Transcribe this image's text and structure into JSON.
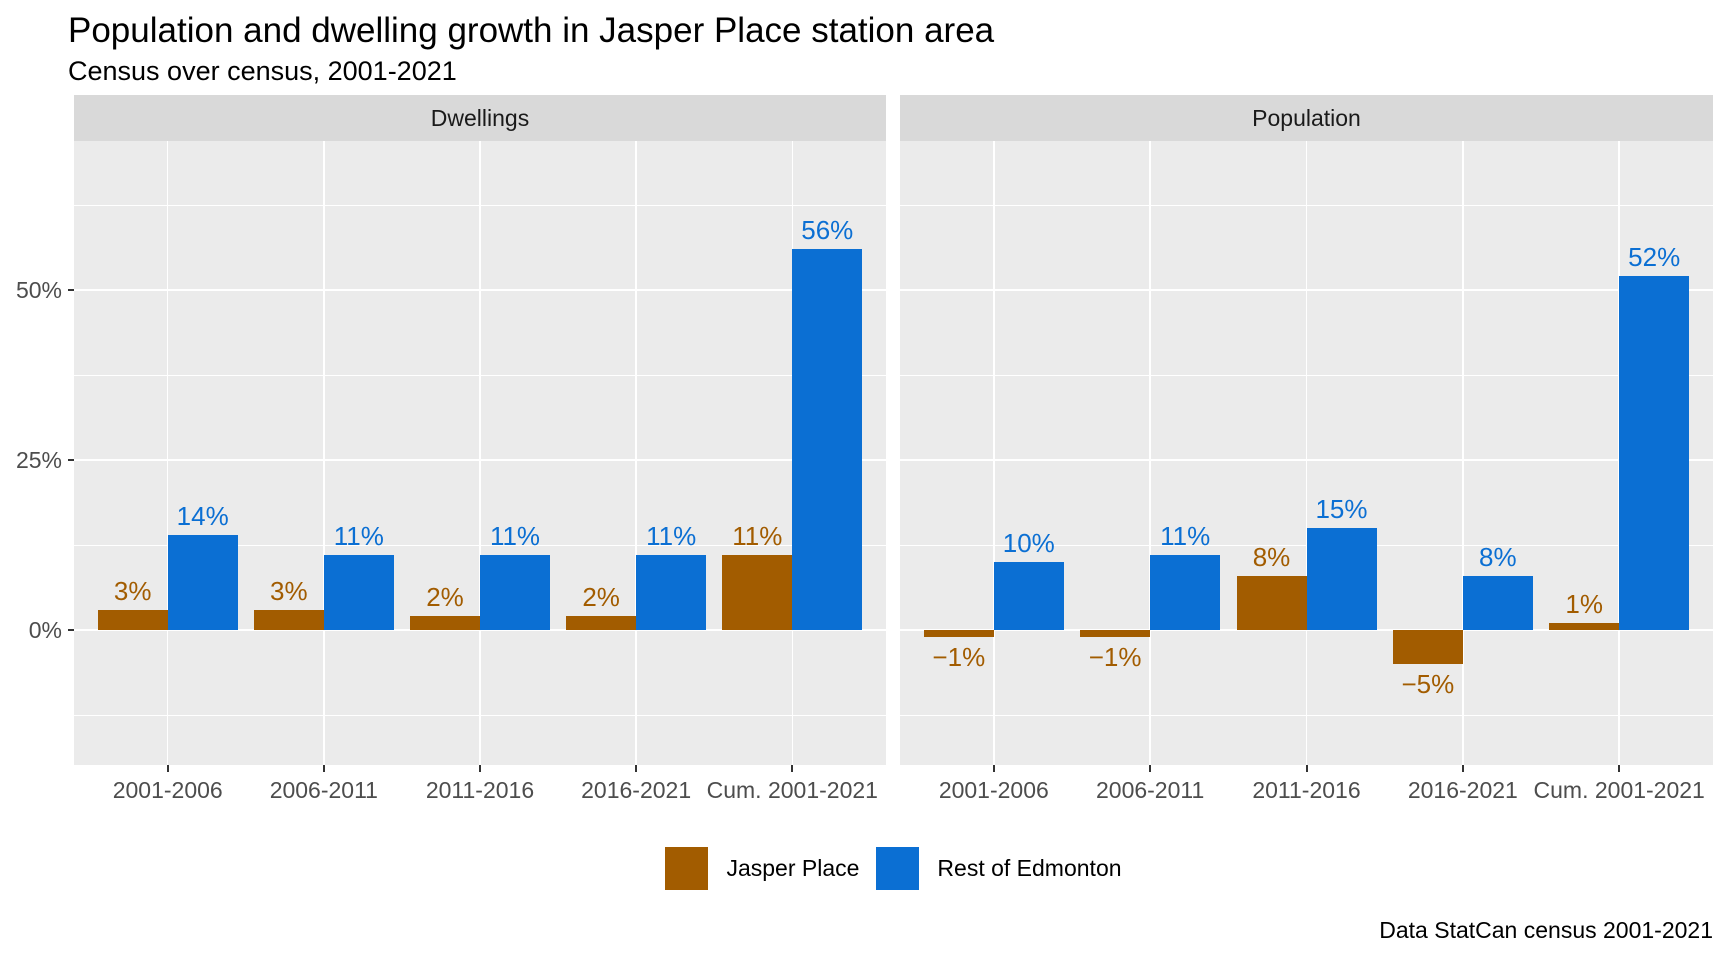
{
  "page": {
    "title": "Population and dwelling growth in Jasper Place station area",
    "subtitle": "Census over census, 2001-2021",
    "caption": "Data StatCan census 2001-2021"
  },
  "chart_data": {
    "type": "bar",
    "title": "Population and dwelling growth in Jasper Place station area",
    "subtitle": "Census over census, 2001-2021",
    "caption": "Data StatCan census 2001-2021",
    "categories": [
      "2001-2006",
      "2006-2011",
      "2011-2016",
      "2016-2021",
      "Cum. 2001-2021"
    ],
    "facets": [
      {
        "label": "Dwellings",
        "series": [
          {
            "name": "Jasper Place",
            "color": "#A25C00",
            "values": [
              3,
              3,
              2,
              2,
              11
            ],
            "labels": [
              "3%",
              "3%",
              "2%",
              "2%",
              "11%"
            ]
          },
          {
            "name": "Rest of Edmonton",
            "color": "#0B6FD3",
            "values": [
              14,
              11,
              11,
              11,
              56
            ],
            "labels": [
              "14%",
              "11%",
              "11%",
              "11%",
              "56%"
            ]
          }
        ]
      },
      {
        "label": "Population",
        "series": [
          {
            "name": "Jasper Place",
            "color": "#A25C00",
            "values": [
              -1,
              -1,
              8,
              -5,
              1
            ],
            "labels": [
              "−1%",
              "−1%",
              "8%",
              "−5%",
              "1%"
            ]
          },
          {
            "name": "Rest of Edmonton",
            "color": "#0B6FD3",
            "values": [
              10,
              11,
              15,
              8,
              52
            ],
            "labels": [
              "10%",
              "11%",
              "15%",
              "8%",
              "52%"
            ]
          }
        ]
      }
    ],
    "y_axis": {
      "ticks": [
        0,
        25,
        50
      ],
      "tick_labels": [
        "0%",
        "25%",
        "50%"
      ],
      "minor_ticks": [
        -12.5,
        12.5,
        37.5,
        62.5
      ],
      "range": [
        -20.25,
        71.25
      ],
      "grid": true
    },
    "x_axis": {
      "tick_labels": [
        "2001-2006",
        "2006-2011",
        "2011-2016",
        "2016-2021",
        "Cum. 2001-2021"
      ]
    },
    "legend": {
      "position": "bottom",
      "items": [
        {
          "label": "Jasper Place",
          "color": "#A25C00"
        },
        {
          "label": "Rest of Edmonton",
          "color": "#0B6FD3"
        }
      ]
    },
    "colors": {
      "panel_background": "#EBEBEB",
      "strip_background": "#D9D9D9",
      "gridline": "#FFFFFF",
      "axis_text": "#4D4D4D",
      "tick_mark": "#333333"
    }
  }
}
